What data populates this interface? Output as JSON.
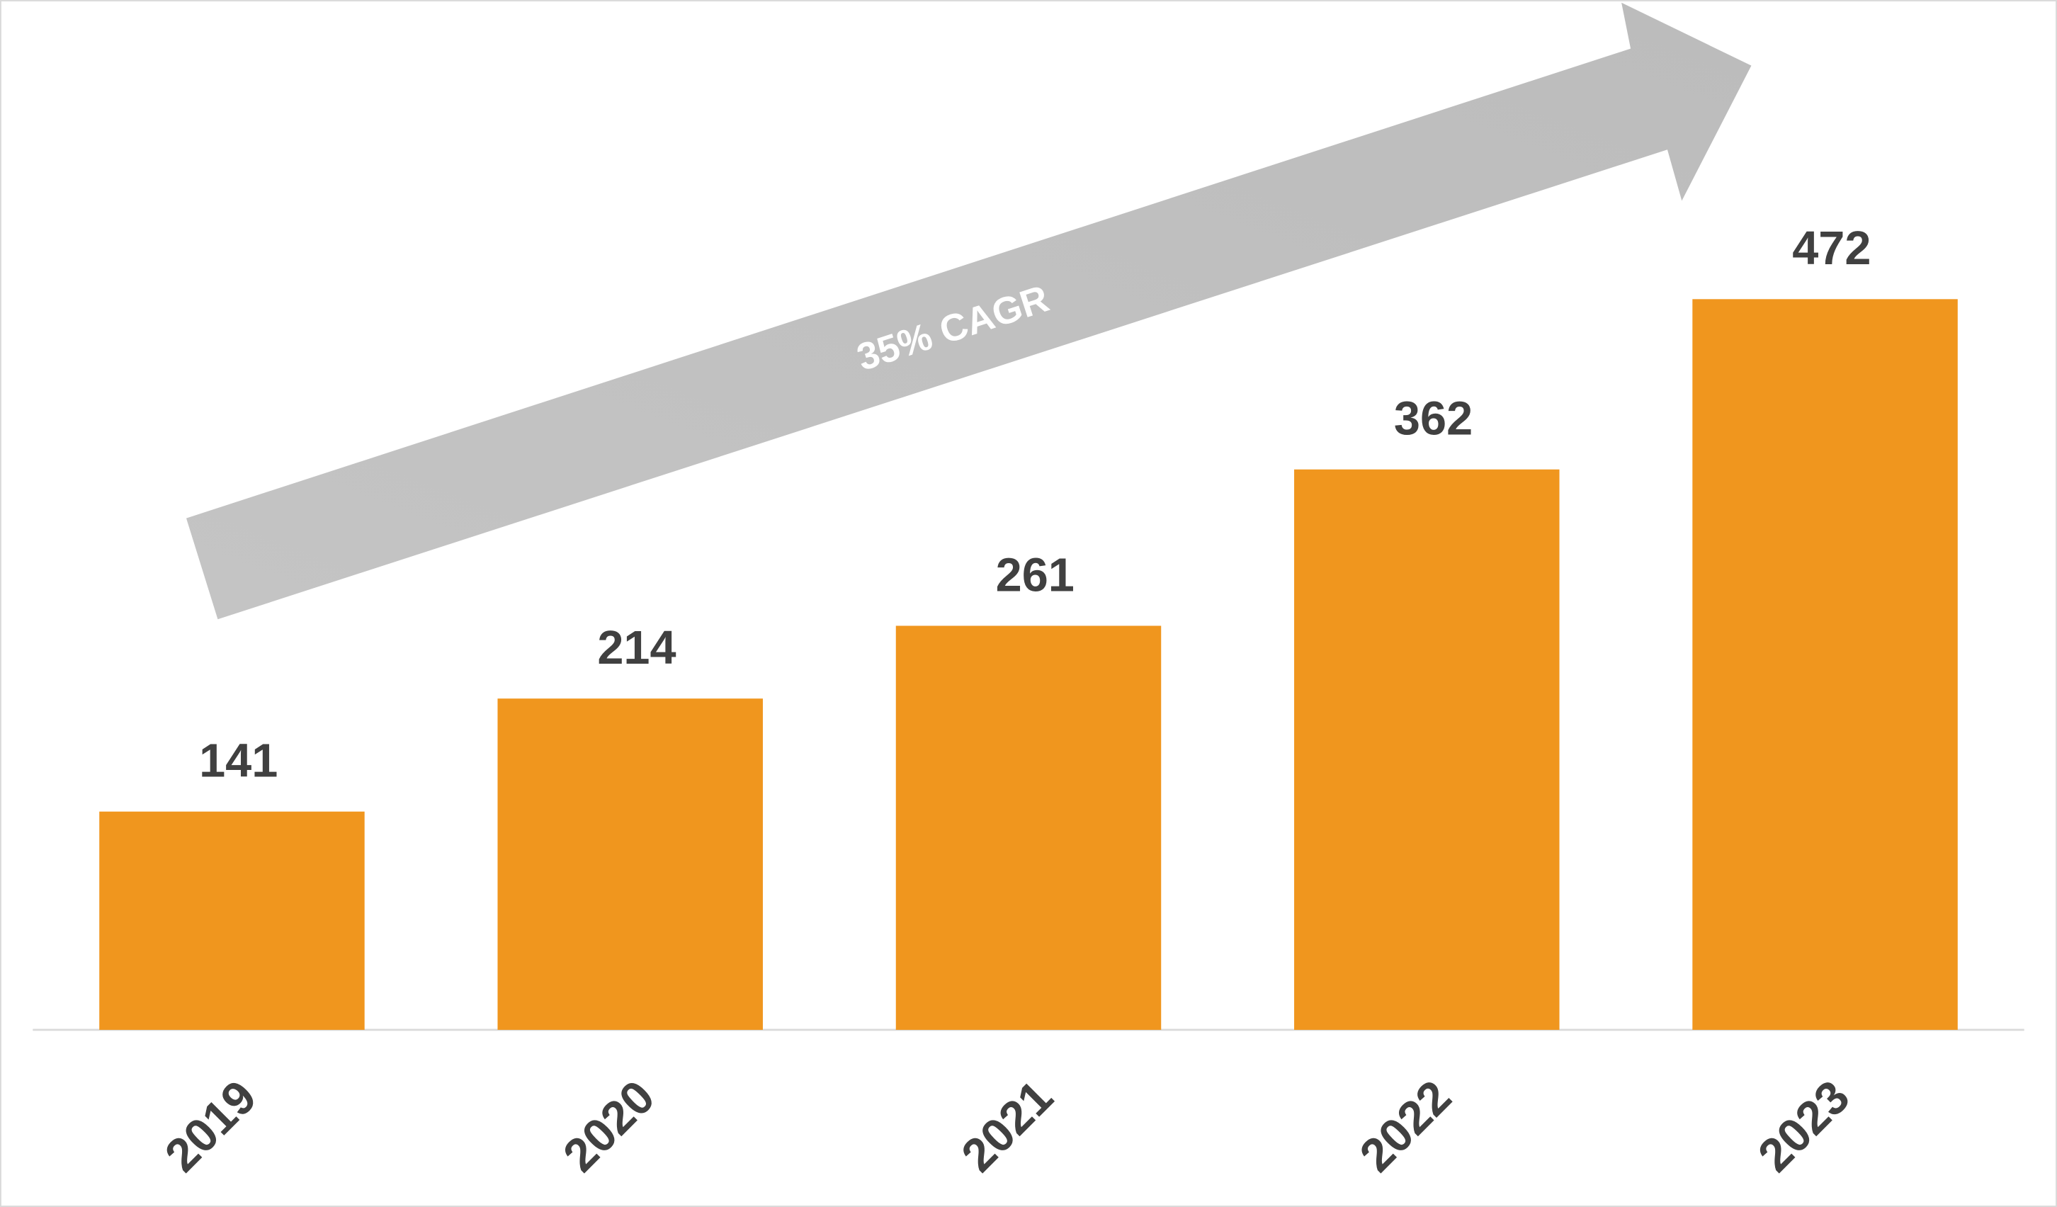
{
  "chart_data": {
    "type": "bar",
    "categories": [
      "2019",
      "2020",
      "2021",
      "2022",
      "2023"
    ],
    "values": [
      141,
      214,
      261,
      362,
      472
    ],
    "color": "#F0961E",
    "annotation": "35% CAGR"
  }
}
